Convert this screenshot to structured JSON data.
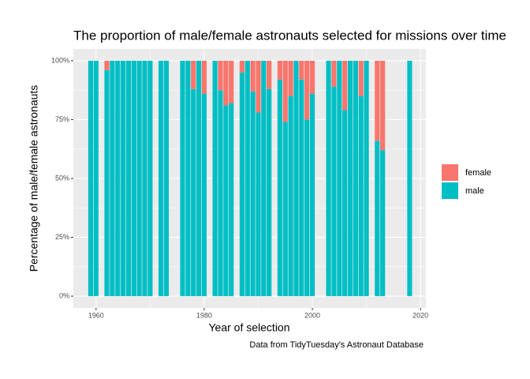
{
  "chart_data": {
    "type": "bar",
    "stacked": true,
    "title": "The proportion of male/female astronauts selected for missions over time",
    "x_label": "Year of selection",
    "y_label": "Percentage of male/female astronauts",
    "caption": "Data from TidyTuesday's Astronaut Database",
    "x": [
      1959,
      1960,
      1962,
      1963,
      1964,
      1965,
      1966,
      1967,
      1968,
      1969,
      1970,
      1972,
      1973,
      1976,
      1977,
      1978,
      1979,
      1980,
      1982,
      1983,
      1984,
      1985,
      1987,
      1988,
      1989,
      1990,
      1991,
      1992,
      1994,
      1995,
      1996,
      1997,
      1998,
      1999,
      2000,
      2003,
      2004,
      2005,
      2006,
      2007,
      2008,
      2009,
      2010,
      2012,
      2013,
      2018
    ],
    "series": [
      {
        "name": "male",
        "color": "#00bfc4",
        "values": [
          1,
          1,
          0.96,
          1,
          1,
          1,
          1,
          1,
          1,
          1,
          1,
          1,
          1,
          1,
          1,
          0.88,
          1,
          0.86,
          1,
          0.875,
          0.81,
          0.82,
          0.95,
          1,
          0.87,
          0.78,
          1,
          0.88,
          0.92,
          0.74,
          0.85,
          1,
          0.92,
          0.75,
          0.86,
          1,
          0.89,
          1,
          0.79,
          1,
          1,
          0.85,
          1,
          0.66,
          0.62,
          1
        ]
      },
      {
        "name": "female",
        "color": "#f8766d",
        "values": [
          0,
          0,
          0.04,
          0,
          0,
          0,
          0,
          0,
          0,
          0,
          0,
          0,
          0,
          0,
          0,
          0.12,
          0,
          0.14,
          0,
          0.125,
          0.19,
          0.18,
          0.05,
          0,
          0.13,
          0.22,
          0,
          0.12,
          0.08,
          0.26,
          0.15,
          0,
          0.08,
          0.25,
          0.14,
          0,
          0.11,
          0,
          0.21,
          0,
          0,
          0.15,
          0,
          0.34,
          0.38,
          0
        ]
      }
    ],
    "legend_order": [
      "female",
      "male"
    ],
    "xlim": [
      1955.8,
      2021
    ],
    "xticks": [
      1960,
      1980,
      2000,
      2020
    ],
    "ylim": [
      -0.05,
      1.05
    ],
    "yticks": [
      {
        "value": 0,
        "label": "0%"
      },
      {
        "value": 0.25,
        "label": "25%"
      },
      {
        "value": 0.5,
        "label": "50%"
      },
      {
        "value": 0.75,
        "label": "75%"
      },
      {
        "value": 1,
        "label": "100%"
      }
    ],
    "grid": true,
    "legend": "right"
  }
}
